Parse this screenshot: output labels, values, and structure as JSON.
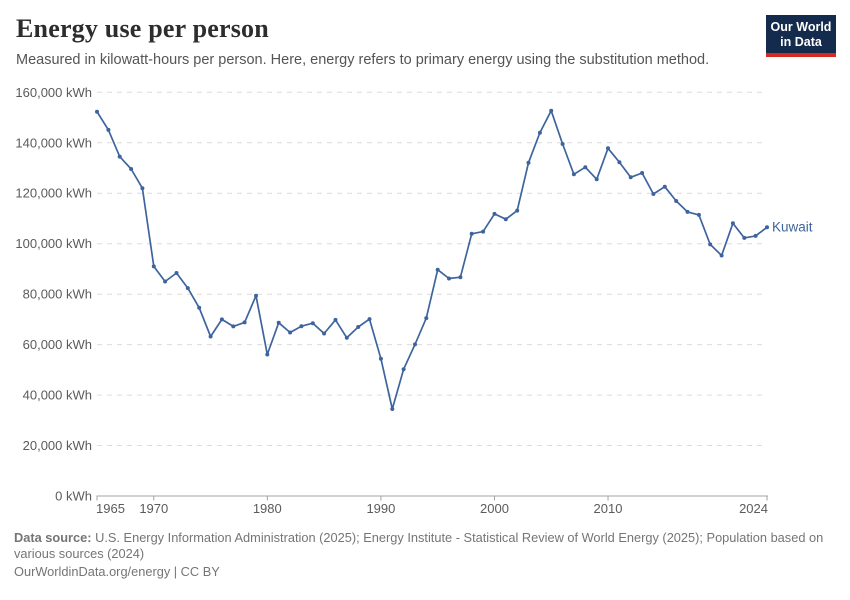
{
  "header": {
    "title": "Energy use per person",
    "subtitle": "Measured in kilowatt-hours per person. Here, energy refers to primary energy using the substitution method.",
    "logo": {
      "line1": "Our World",
      "line2": "in Data",
      "bg_color": "#142b4d",
      "accent_color": "#d42b20"
    }
  },
  "chart_data": {
    "type": "line",
    "title": "Energy use per person",
    "unit": "kWh",
    "xlabel": "",
    "ylabel": "",
    "xlim": [
      1965,
      2024
    ],
    "ylim": [
      0,
      160000
    ],
    "grid": "horizontal dashed",
    "legend_position": "end-of-line label",
    "x_ticks": [
      {
        "v": 1965,
        "label": "1965"
      },
      {
        "v": 1970,
        "label": "1970"
      },
      {
        "v": 1980,
        "label": "1980"
      },
      {
        "v": 1990,
        "label": "1990"
      },
      {
        "v": 2000,
        "label": "2000"
      },
      {
        "v": 2010,
        "label": "2010"
      },
      {
        "v": 2024,
        "label": "2024"
      }
    ],
    "y_ticks": [
      {
        "v": 0,
        "label": "0 kWh"
      },
      {
        "v": 20000,
        "label": "20,000 kWh"
      },
      {
        "v": 40000,
        "label": "40,000 kWh"
      },
      {
        "v": 60000,
        "label": "60,000 kWh"
      },
      {
        "v": 80000,
        "label": "80,000 kWh"
      },
      {
        "v": 100000,
        "label": "100,000 kWh"
      },
      {
        "v": 120000,
        "label": "120,000 kWh"
      },
      {
        "v": 140000,
        "label": "140,000 kWh"
      },
      {
        "v": 160000,
        "label": "160,000 kWh"
      }
    ],
    "series": [
      {
        "name": "Kuwait",
        "color": "#3e649e",
        "points": [
          [
            1965,
            152300
          ],
          [
            1966,
            145100
          ],
          [
            1967,
            134500
          ],
          [
            1968,
            129600
          ],
          [
            1969,
            122000
          ],
          [
            1970,
            91000
          ],
          [
            1971,
            85000
          ],
          [
            1972,
            88400
          ],
          [
            1973,
            82400
          ],
          [
            1974,
            74600
          ],
          [
            1975,
            63200
          ],
          [
            1976,
            70000
          ],
          [
            1977,
            67200
          ],
          [
            1978,
            68800
          ],
          [
            1979,
            79400
          ],
          [
            1980,
            56100
          ],
          [
            1981,
            68700
          ],
          [
            1982,
            64800
          ],
          [
            1983,
            67300
          ],
          [
            1984,
            68500
          ],
          [
            1985,
            64400
          ],
          [
            1986,
            69800
          ],
          [
            1987,
            62700
          ],
          [
            1988,
            67000
          ],
          [
            1989,
            70100
          ],
          [
            1990,
            54400
          ],
          [
            1991,
            34500
          ],
          [
            1992,
            50200
          ],
          [
            1993,
            60100
          ],
          [
            1994,
            70500
          ],
          [
            1995,
            89700
          ],
          [
            1996,
            86200
          ],
          [
            1997,
            86700
          ],
          [
            1998,
            103900
          ],
          [
            1999,
            104800
          ],
          [
            2000,
            111800
          ],
          [
            2001,
            109700
          ],
          [
            2002,
            113100
          ],
          [
            2003,
            132100
          ],
          [
            2004,
            144000
          ],
          [
            2005,
            152700
          ],
          [
            2006,
            139500
          ],
          [
            2007,
            127500
          ],
          [
            2008,
            130300
          ],
          [
            2009,
            125500
          ],
          [
            2010,
            137800
          ],
          [
            2011,
            132300
          ],
          [
            2012,
            126300
          ],
          [
            2013,
            128000
          ],
          [
            2014,
            119700
          ],
          [
            2015,
            122600
          ],
          [
            2016,
            116900
          ],
          [
            2017,
            112600
          ],
          [
            2018,
            111400
          ],
          [
            2019,
            99700
          ],
          [
            2020,
            95300
          ],
          [
            2021,
            108100
          ],
          [
            2022,
            102300
          ],
          [
            2023,
            103100
          ],
          [
            2024,
            106500
          ]
        ]
      }
    ],
    "colors": {
      "grid": "#dcdcdc",
      "axis": "#a3a3a3",
      "tick_label": "#5b5b5b"
    }
  },
  "footer": {
    "data_source_label": "Data source:",
    "data_source_text": "U.S. Energy Information Administration (2025); Energy Institute - Statistical Review of World Energy (2025); Population based on various sources (2024)",
    "link_line": "OurWorldinData.org/energy | CC BY"
  }
}
